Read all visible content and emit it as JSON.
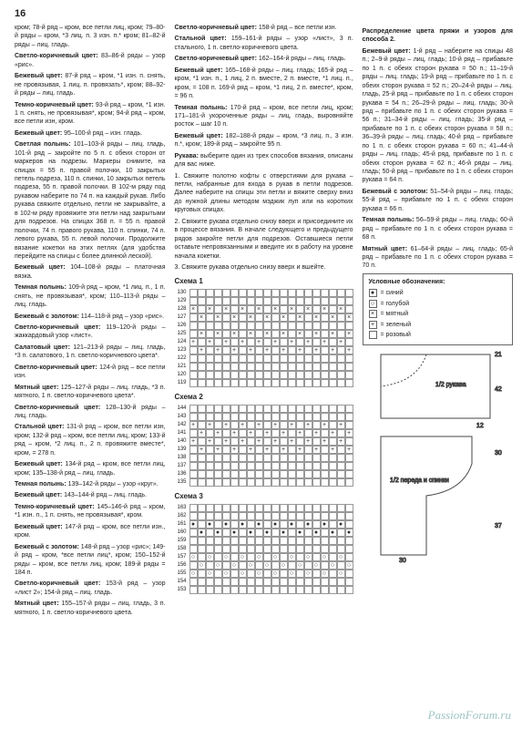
{
  "page_number": "16",
  "col1": [
    "кром; 78-й ряд – кром, все петли лиц, кром; 79–80-й ряды – кром, *3 лиц. п. 3 изн. п.* кром; 81–82-й ряды – лиц. гладь.",
    {
      "b": "Светло-коричневый цвет:",
      "t": " 83–86-й ряды – узор «рис»."
    },
    {
      "b": "Бежевый цвет:",
      "t": " 87-й ряд – кром, *1 изн. п. снять, не провязывая, 1 лиц. п. провязать*, кром; 88–92-й ряды – лиц. гладь."
    },
    {
      "b": "Темно-коричневый цвет:",
      "t": " 93-й ряд – кром, *1 изн. 1 п. снять, не провязывая*, кром; 94-й ряд – кром, все петли изн, кром."
    },
    {
      "b": "Бежевый цвет:",
      "t": " 95–100-й ряд – изн. гладь."
    },
    {
      "b": "Светлая полынь:",
      "t": " 101–103-й ряды – лиц. гладь, 101-й ряд – закройте по 5 п. с обеих сторон от маркеров на подрезы. Маркеры снимите, на спицах = 55 п. правой полочки, 10 закрытых петель подреза, 110 п. спинки, 10 закрытых петель подреза, 55 п. правой полочки. В 102-м ряду под рукавом наберите по 74 п. на каждый рукав. Либо рукава свяжите отдельно, петли не закрывайте, а в 102-м ряду провяжите эти петли над закрытыми для подрезов. На спицах 368 п. = 55 п. правой полочки, 74 п. правого рукава, 110 п. спинки, 74 п. левого рукава, 55 п. левой полочки. Продолжите вязание кокетки на этих петлях (для удобства перейдите на спицы с более длинной леской)."
    },
    {
      "b": "Бежевый цвет:",
      "t": " 104–108-й ряды – платочная вязка."
    },
    {
      "b": "Темная полынь:",
      "t": " 109-й ряд – кром, *1 лиц. п., 1 п. снять, не провязывая*, кром; 110–113-й ряды – лиц. гладь."
    },
    {
      "b": "Бежевый с золотом:",
      "t": " 114–118-й ряд – узор «рис»."
    },
    {
      "b": "Светло-коричневый цвет:",
      "t": " 119–120-й ряды – жаккардовый узор «лист»."
    },
    {
      "b": "Салатовый цвет:",
      "t": " 121–213-й ряды – лиц. гладь, *3 п. салатового, 1 п. светло-коричневого цвета*."
    },
    {
      "b": "Светло-коричневый цвет:",
      "t": " 124-й ряд – все петли изн."
    },
    {
      "b": "Мятный цвет:",
      "t": " 125–127-й ряды – лиц. гладь, *3 п. мятного, 1 п. светло-коричневого цвета*."
    },
    {
      "b": "Светло-коричневый цвет:",
      "t": " 128–130-й ряды – лиц. гладь."
    },
    {
      "b": "Стальной цвет:",
      "t": " 131-й ряд – кром, все петли изн, кром; 132-й ряд – кром, все петли лиц, кром; 133-й ряд – кром, *2 лиц. п., 2 п. провяжите вместе*, кром, = 278 п."
    },
    {
      "b": "Бежевый цвет:",
      "t": " 134-й ряд – кром, все петли лиц, кром; 135–138-й ряд – лиц. гладь."
    },
    {
      "b": "Темная полынь:",
      "t": " 139–142-й ряды – узор «круг»."
    },
    {
      "b": "Бежевый цвет:",
      "t": " 143–144-й ряд – лиц. гладь."
    },
    {
      "b": "Темно-коричневый цвет:",
      "t": " 145–146-й ряд – кром, *1 изн. п., 1 п. снять, не провязывая*, кром."
    },
    {
      "b": "Бежевый цвет:",
      "t": " 147-й ряд – кром, все петли изн., кром."
    },
    {
      "b": "Бежевый с золотом:",
      "t": " 148-й ряд – узор «рис»; 149-й ряд – кром, *все петли лиц*, кром; 150–152-й ряды – кром, все петли лиц, кром; 189-й ряды = 184 п."
    },
    {
      "b": "Светло-коричневый цвет:",
      "t": " 153-й ряд – узор «лист 2»; 154-й ряд – лиц. гладь."
    },
    {
      "b": "Мятный цвет:",
      "t": " 155–157-й ряды – лиц. гладь, 3 п. мятного, 1 п. светло-коричневого цвета."
    }
  ],
  "col2": [
    {
      "b": "Светло-коричневый цвет:",
      "t": " 158-й ряд – все петли изн."
    },
    {
      "b": "Стальной цвет:",
      "t": " 159–161-й ряды – узор «лист», 3 п. стального, 1 п. светло-коричневого цвета."
    },
    {
      "b": "Светло-коричневый цвет:",
      "t": " 162–164-й ряды – лиц. гладь."
    },
    {
      "b": "Бежевый цвет:",
      "t": " 165–168-й ряды – лиц. гладь; 165-й ряд – кром, *1 изн. п., 1 лиц, 2 п. вместе, 2 п. вместе, *1 лиц. п., кром, = 108 п. 169-й ряд – кром, *1 лиц, 2 п. вместе*, кром, = 96 п."
    },
    {
      "b": "Темная полынь:",
      "t": " 170-й ряд – кром, все петли лиц, кром; 171–181-й укороченные ряды – лиц. гладь, выровняйте росток – шаг 10 п."
    },
    {
      "b": "Бежевый цвет:",
      "t": " 182–188-й ряды – кром, *3 лиц. п., 3 изн. п.*, кром; 189-й ряд – закройте 95 п."
    },
    {
      "b": "Рукава:",
      "t": " выберите один из трех способов вязания, описаны для вас ниже."
    },
    "1. Свяжите полотно кофты с отверстиями для рукава – петли, набранные для входа в рукав в петли подрезов. Далее наберите на спицы эти петли и вяжите сверху вниз до нужной длины методом мэджик луп или на коротких круговых спицах.",
    "2. Свяжите рукава отдельно снизу вверх и присоедините их в процессе вязания. В начале следующего и предыдущего рядов закройте петли для подрезов. Оставшиеся петли оставьте непровязанными и введите их в работу на уровне начала кокетки.",
    "3. Свяжите рукава отдельно снизу вверх и вшейте."
  ],
  "col3_title": "Распределение цвета пряжи и узоров для способа 2.",
  "col3": [
    {
      "b": "Бежевый цвет:",
      "t": " 1-й ряд – наберите на спицы 48 п.; 2–9-й ряды – лиц. гладь; 10-й ряд – прибавьте по 1 п. с обеих сторон рукава = 50 п.; 11–19-й ряды – лиц. гладь; 19-й ряд – прибавьте по 1 п. с обеих сторон рукава = 52 п.; 20–24-й ряды – лиц. гладь, 25-й ряд – прибавьте по 1 п. с обеих сторон рукава = 54 п.; 26–29-й ряды – лиц. гладь; 30-й ряд – прибавьте по 1 п. с обеих сторон рукава = 56 п.; 31–34-й ряды – лиц. гладь; 35-й ряд – прибавьте по 1 п. с обеих сторон рукава = 58 п.; 36–39-й ряды – лиц. гладь; 40-й ряд – прибавьте по 1 п. с обеих сторон рукава = 60 п.; 41–44-й ряды – лиц. гладь; 45-й ряд, прибавьте по 1 п. с обеих сторон рукава = 62 п.; 46-й ряды – лиц. гладь; 50-й ряд – прибавьте по 1 п. с обеих сторон рукава = 64 п."
    },
    {
      "b": "Бежевый с золотом:",
      "t": " 51–54-й ряды – лиц. гладь; 55-й ряд – прибавьте по 1 п. с обеих сторон рукава = 66 п."
    },
    {
      "b": "Темная полынь:",
      "t": " 56–59-й ряды – лиц. гладь; 60-й ряд – прибавьте по 1 п. с обеих сторон рукава = 68 п."
    },
    {
      "b": "Мятный цвет:",
      "t": " 61–64-й ряды – лиц. гладь; 65-й ряд – прибавьте по 1 п. с обеих сторон рукава = 70 п."
    }
  ],
  "schemes": [
    {
      "label": "Схема 1",
      "rows": [
        130,
        129,
        128,
        127,
        126,
        125,
        124,
        123,
        122,
        121,
        120,
        119
      ],
      "patterns": [
        "",
        "",
        "×",
        "×",
        "",
        "×",
        "+",
        "+",
        "",
        "",
        "",
        ""
      ]
    },
    {
      "label": "Схема 2",
      "rows": [
        144,
        143,
        142,
        141,
        140,
        139,
        138,
        137,
        136,
        135
      ],
      "patterns": [
        "",
        "",
        "+",
        "+",
        "+",
        "+",
        "",
        "",
        "",
        ""
      ]
    },
    {
      "label": "Схема 3",
      "rows": [
        163,
        162,
        161,
        160,
        159,
        158,
        157,
        156,
        155,
        154,
        153
      ],
      "patterns": [
        "",
        "",
        "●",
        "●",
        "",
        "",
        "○",
        "○",
        "○",
        "",
        ""
      ]
    }
  ],
  "legend": {
    "title": "Условные обозначения:",
    "items": [
      {
        "sym": "●",
        "label": "= синий"
      },
      {
        "sym": "○",
        "label": "= голубой"
      },
      {
        "sym": "×",
        "label": "= мятный"
      },
      {
        "sym": "+",
        "label": "= зеленый"
      },
      {
        "sym": "",
        "label": "= розовый"
      }
    ]
  },
  "diagram": {
    "labels": [
      "21",
      "1/2\nрукава",
      "42",
      "12",
      "1/2\nпереда\nи спинки",
      "30",
      "30",
      "37"
    ]
  },
  "watermark": "PassionForum.ru"
}
